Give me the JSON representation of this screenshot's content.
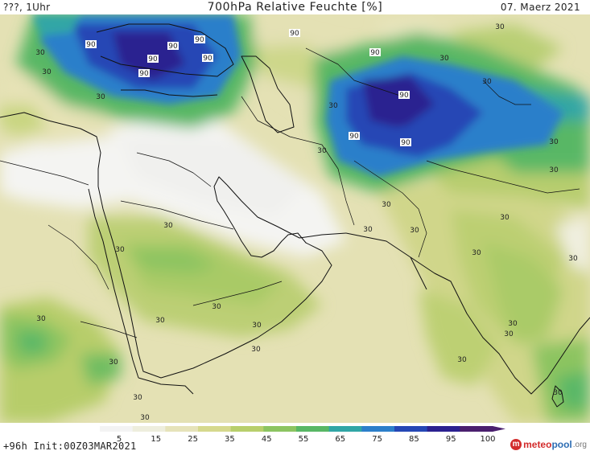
{
  "header": {
    "left": "???, 1Uhr",
    "title": "700hPa Relative Feuchte [%]",
    "date": "07. Maerz 2021"
  },
  "footer": {
    "init": "+96h Init:00Z03MAR2021",
    "logo": {
      "part1": "meteo",
      "part2": "pool",
      "part3": ".org"
    }
  },
  "colorbar": {
    "ticks": [
      "5",
      "15",
      "25",
      "35",
      "45",
      "55",
      "65",
      "75",
      "85",
      "95",
      "100"
    ],
    "colors": [
      "#f3f3f3",
      "#eeeedd",
      "#e6e3ba",
      "#d6d98e",
      "#b8cf6c",
      "#8cc461",
      "#58b765",
      "#30a6a6",
      "#2c7fca",
      "#2547b5",
      "#2b2190",
      "#4a1f6e"
    ]
  },
  "map": {
    "contour_labels": [
      "90",
      "90",
      "90",
      "90",
      "90",
      "90",
      "90",
      "90",
      "90",
      "90",
      "90",
      "30",
      "30",
      "30",
      "30",
      "30",
      "30",
      "30",
      "30",
      "30",
      "30",
      "30",
      "30",
      "30",
      "30",
      "30",
      "30",
      "30",
      "30",
      "30",
      "30",
      "30",
      "30",
      "30",
      "30",
      "30",
      "30",
      "30",
      "30",
      "30",
      "30"
    ]
  }
}
